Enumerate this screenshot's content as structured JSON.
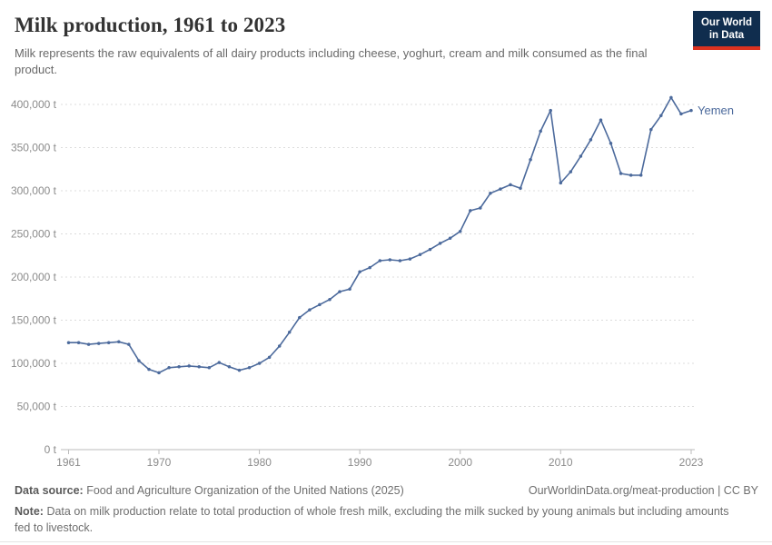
{
  "header": {
    "title": "Milk production, 1961 to 2023",
    "subtitle": "Milk represents the raw equivalents of all dairy products including cheese, yoghurt, cream and milk consumed as the final product.",
    "logo": {
      "line1": "Our World",
      "line2": "in Data",
      "bg_color": "#102d4e",
      "accent_color": "#dc3220"
    }
  },
  "chart_data": {
    "type": "line",
    "title": "Milk production, 1961 to 2023",
    "xlabel": "",
    "ylabel": "",
    "unit": "t",
    "grid": "horizontal-dashed",
    "legend_position": "end-of-line-label",
    "xlim": [
      1961,
      2023
    ],
    "ylim": [
      0,
      420000
    ],
    "xticks": [
      1961,
      1970,
      1980,
      1990,
      2000,
      2010,
      2023
    ],
    "yticks": [
      {
        "value": 0,
        "label": "0 t"
      },
      {
        "value": 50000,
        "label": "50,000 t"
      },
      {
        "value": 100000,
        "label": "100,000 t"
      },
      {
        "value": 150000,
        "label": "150,000 t"
      },
      {
        "value": 200000,
        "label": "200,000 t"
      },
      {
        "value": 250000,
        "label": "250,000 t"
      },
      {
        "value": 300000,
        "label": "300,000 t"
      },
      {
        "value": 350000,
        "label": "350,000 t"
      },
      {
        "value": 400000,
        "label": "400,000 t"
      }
    ],
    "series": [
      {
        "name": "Yemen",
        "color": "#4C6A9C",
        "x": [
          1961,
          1962,
          1963,
          1964,
          1965,
          1966,
          1967,
          1968,
          1969,
          1970,
          1971,
          1972,
          1973,
          1974,
          1975,
          1976,
          1977,
          1978,
          1979,
          1980,
          1981,
          1982,
          1983,
          1984,
          1985,
          1986,
          1987,
          1988,
          1989,
          1990,
          1991,
          1992,
          1993,
          1994,
          1995,
          1996,
          1997,
          1998,
          1999,
          2000,
          2001,
          2002,
          2003,
          2004,
          2005,
          2006,
          2007,
          2008,
          2009,
          2010,
          2011,
          2012,
          2013,
          2014,
          2015,
          2016,
          2017,
          2018,
          2019,
          2020,
          2021,
          2022,
          2023
        ],
        "values": [
          124000,
          124000,
          122000,
          123000,
          124000,
          125000,
          122000,
          103000,
          93000,
          89000,
          95000,
          96000,
          97000,
          96000,
          95000,
          101000,
          96000,
          92000,
          95000,
          100000,
          107000,
          120000,
          136000,
          153000,
          162000,
          168000,
          174000,
          183000,
          186000,
          206000,
          211000,
          219000,
          220000,
          219000,
          221000,
          226000,
          232000,
          239000,
          245000,
          253000,
          277000,
          280000,
          297000,
          302000,
          307000,
          303000,
          336000,
          369000,
          393000,
          309000,
          322000,
          340000,
          359000,
          382000,
          355000,
          320000,
          318000,
          318000,
          371000,
          387000,
          408000,
          389000,
          393000
        ]
      }
    ]
  },
  "footer": {
    "datasource_label": "Data source:",
    "datasource_text": "Food and Agriculture Organization of the United Nations (2025)",
    "link_text": "OurWorldinData.org/meat-production | CC BY",
    "note_label": "Note:",
    "note_text": "Data on milk production relate to total production of whole fresh milk, excluding the milk sucked by young animals but including amounts fed to livestock."
  },
  "colors": {
    "title_text": "#333333",
    "subtitle_text": "#696969",
    "axis_text": "#8c8c8c",
    "gridline": "#dcdcdc",
    "axis_line": "#bbbbbb",
    "line": "#4C6A9C"
  }
}
